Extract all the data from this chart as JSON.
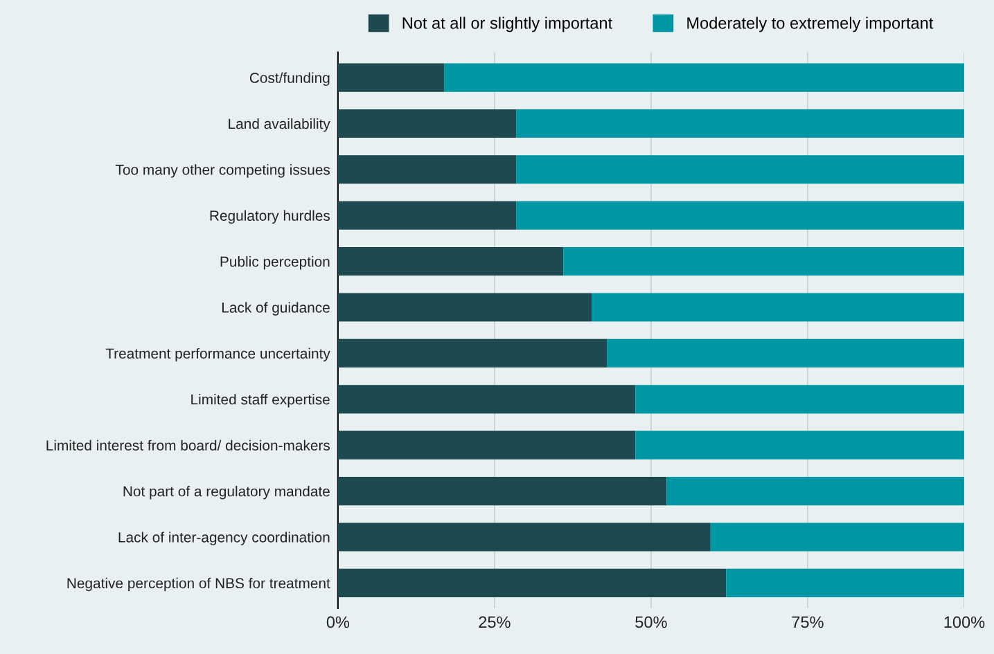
{
  "chart_data": {
    "type": "bar",
    "orientation": "horizontal",
    "stacked": true,
    "categories": [
      "Cost/funding",
      "Land availability",
      "Too many other competing issues",
      "Regulatory hurdles",
      "Public perception",
      "Lack of guidance",
      "Treatment performance uncertainty",
      "Limited staff expertise",
      "Limited interest from board/ decision-makers",
      "Not part of a regulatory mandate",
      "Lack of inter-agency coordination",
      "Negative perception of NBS for treatment"
    ],
    "series": [
      {
        "name": "Not at all or slightly important",
        "color": "#1c4a50",
        "values": [
          17,
          28.5,
          28.5,
          28.5,
          36,
          40.5,
          43,
          47.5,
          47.5,
          52.5,
          59.5,
          62
        ]
      },
      {
        "name": "Moderately to extremely important",
        "color": "#0097a4",
        "values": [
          83,
          71.5,
          71.5,
          71.5,
          64,
          59.5,
          57,
          52.5,
          52.5,
          47.5,
          40.5,
          38
        ]
      }
    ],
    "xlim": [
      0,
      100
    ],
    "xticks": [
      {
        "value": 0,
        "label": "0%"
      },
      {
        "value": 25,
        "label": "25%"
      },
      {
        "value": 50,
        "label": "50%"
      },
      {
        "value": 75,
        "label": "75%"
      },
      {
        "value": 100,
        "label": "100%"
      }
    ],
    "grid": "x",
    "legend": "top"
  }
}
